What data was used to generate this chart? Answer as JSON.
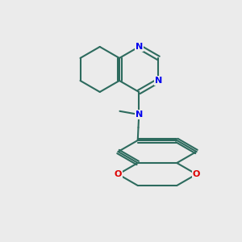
{
  "background_color": "#ebebeb",
  "bond_color": "#2d6b5e",
  "bond_color_dark": "#1a1a1a",
  "nitrogen_color": "#0000ee",
  "oxygen_color": "#dd0000",
  "carbon_color": "#3a7a6a",
  "lw": 1.5,
  "atoms": {
    "N1_label": "N",
    "N2_label": "N",
    "O1_label": "O",
    "O2_label": "O"
  }
}
